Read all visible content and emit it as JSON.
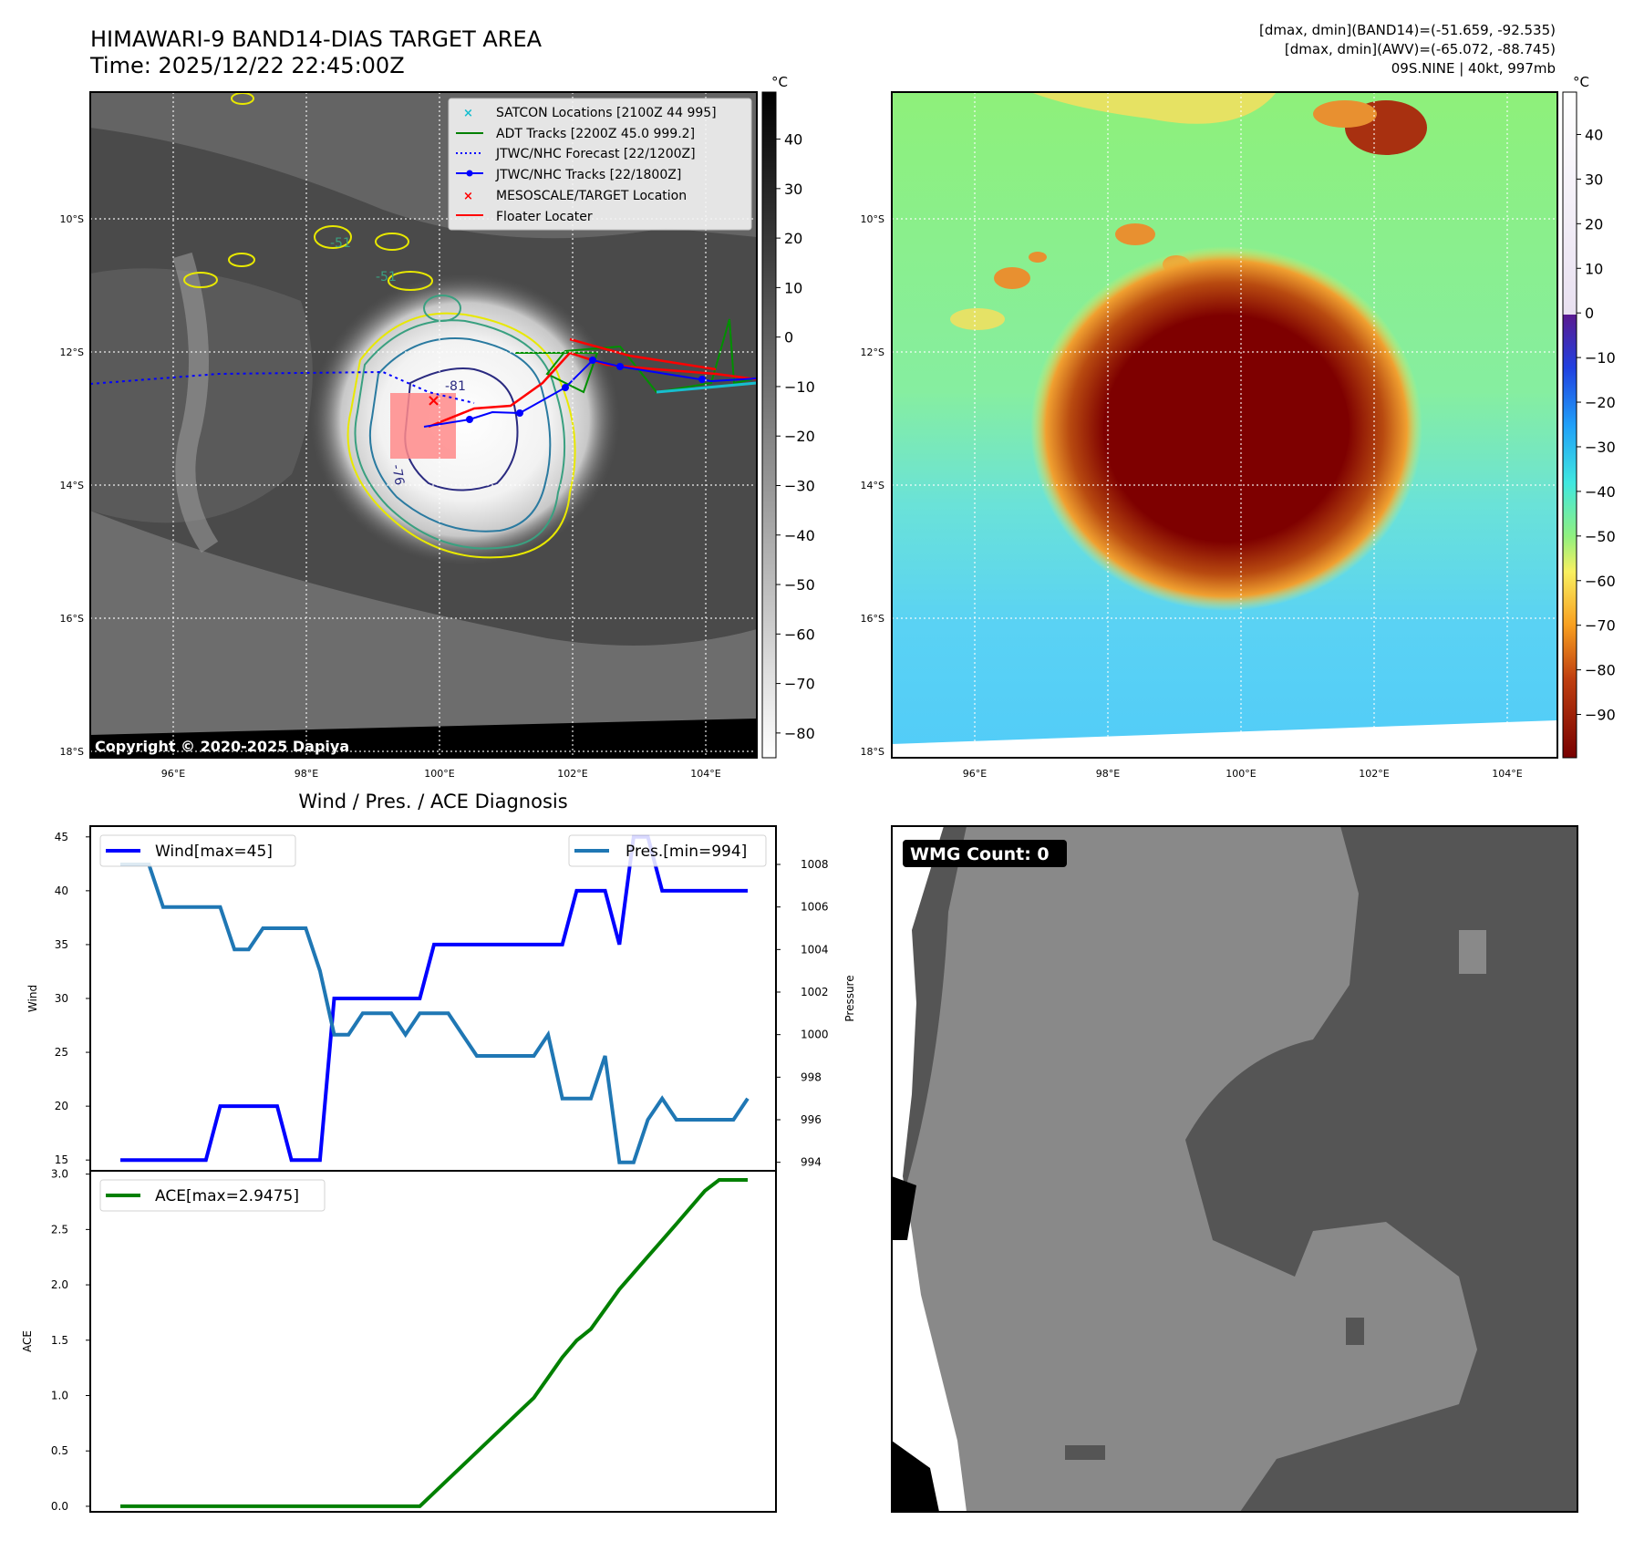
{
  "header": {
    "title_line1": "HIMAWARI-9 BAND14-DIAS TARGET AREA",
    "title_line2": "Time: 2025/12/22 22:45:00Z",
    "info_line1": "[dmax, dmin](BAND14)=(-51.659, -92.535)",
    "info_line2": "[dmax, dmin](AWV)=(-65.072, -88.745)",
    "info_line3": "09S.NINE | 40kt, 997mb"
  },
  "map": {
    "lat_labels": [
      "10°S",
      "12°S",
      "14°S",
      "16°S",
      "18°S"
    ],
    "lon_labels": [
      "96°E",
      "98°E",
      "100°E",
      "102°E",
      "104°E"
    ],
    "copyright": "Copyright © 2020-2025 Dapiya",
    "contour_labels": [
      "-51",
      "-51",
      "-81",
      "-76"
    ],
    "legend": [
      {
        "label": "SATCON Locations [2100Z 44 995]",
        "color": "#17becf"
      },
      {
        "label": "ADT Tracks [2200Z 45.0 999.2]",
        "color": "#008000"
      },
      {
        "label": "JTWC/NHC Forecast [22/1200Z]",
        "color": "#0000ff"
      },
      {
        "label": "JTWC/NHC Tracks [22/1800Z]",
        "color": "#0000ff"
      },
      {
        "label": "MESOSCALE/TARGET Location",
        "color": "#ff0000"
      },
      {
        "label": "Floater Locater",
        "color": "#ff0000"
      }
    ]
  },
  "colorbar_gray": {
    "unit": "°C",
    "ticks": [
      "40",
      "30",
      "20",
      "10",
      "0",
      "−10",
      "−20",
      "−30",
      "−40",
      "−50",
      "−60",
      "−70",
      "−80"
    ]
  },
  "colorbar_color": {
    "unit": "°C",
    "ticks": [
      "40",
      "30",
      "20",
      "10",
      "0",
      "−10",
      "−20",
      "−30",
      "−40",
      "−50",
      "−60",
      "−70",
      "−80",
      "−90"
    ]
  },
  "wmg": {
    "badge": "WMG Count: 0"
  },
  "colors": {
    "wind": "#0000ff",
    "pres": "#1f77b4",
    "ace": "#008000"
  },
  "chart_data": [
    {
      "type": "line",
      "title": "Wind / Pres. / ACE Diagnosis",
      "ylabel": "Wind",
      "y2label": "Pressure",
      "ylim": [
        14,
        46
      ],
      "y2lim": [
        993.6,
        1009.8
      ],
      "yticks": [
        "15",
        "20",
        "25",
        "30",
        "35",
        "40",
        "45"
      ],
      "y2ticks": [
        "994",
        "996",
        "998",
        "1000",
        "1002",
        "1004",
        "1006",
        "1008"
      ],
      "x": [
        0,
        1,
        2,
        3,
        4,
        5,
        6,
        7,
        8,
        9,
        10,
        11,
        12,
        13,
        14,
        15,
        16,
        17,
        18,
        19,
        20,
        21,
        22,
        23,
        24,
        25,
        26,
        27,
        28,
        29,
        30,
        31,
        32,
        33,
        34,
        35,
        36,
        37,
        38,
        39,
        40,
        41,
        42,
        43,
        44
      ],
      "series": [
        {
          "name": "Wind[max=45]",
          "axis": "left",
          "values": [
            15,
            15,
            15,
            15,
            15,
            15,
            15,
            20,
            20,
            20,
            20,
            20,
            15,
            15,
            15,
            30,
            30,
            30,
            30,
            30,
            30,
            30,
            35,
            35,
            35,
            35,
            35,
            35,
            35,
            35,
            35,
            35,
            40,
            40,
            40,
            35,
            45,
            45,
            40,
            40,
            40,
            40,
            40,
            40,
            40
          ]
        },
        {
          "name": "Pres.[min=994]",
          "axis": "right",
          "values": [
            1008,
            1008,
            1008,
            1006,
            1006,
            1006,
            1006,
            1006,
            1004,
            1004,
            1005,
            1005,
            1005,
            1005,
            1003,
            1000,
            1000,
            1001,
            1001,
            1001,
            1000,
            1001,
            1001,
            1001,
            1000,
            999,
            999,
            999,
            999,
            999,
            1000,
            997,
            997,
            997,
            999,
            994,
            994,
            996,
            997,
            996,
            996,
            996,
            996,
            996,
            997
          ]
        }
      ]
    },
    {
      "type": "line",
      "ylabel": "ACE",
      "ylim": [
        -0.05,
        3.03
      ],
      "yticks": [
        "0.0",
        "0.5",
        "1.0",
        "1.5",
        "2.0",
        "2.5",
        "3.0"
      ],
      "x": [
        0,
        1,
        2,
        3,
        4,
        5,
        6,
        7,
        8,
        9,
        10,
        11,
        12,
        13,
        14,
        15,
        16,
        17,
        18,
        19,
        20,
        21,
        22,
        23,
        24,
        25,
        26,
        27,
        28,
        29,
        30,
        31,
        32,
        33,
        34,
        35,
        36,
        37,
        38,
        39,
        40,
        41,
        42,
        43,
        44
      ],
      "series": [
        {
          "name": "ACE[max=2.9475]",
          "values": [
            0,
            0,
            0,
            0,
            0,
            0,
            0,
            0,
            0,
            0,
            0,
            0,
            0,
            0,
            0,
            0,
            0,
            0,
            0,
            0,
            0,
            0,
            0.1225,
            0.245,
            0.3675,
            0.49,
            0.6125,
            0.735,
            0.8575,
            0.98,
            1.1625,
            1.345,
            1.4975,
            1.6,
            1.78,
            1.96,
            2.1075,
            2.255,
            2.4025,
            2.55,
            2.7,
            2.85,
            2.9475,
            2.9475,
            2.9475
          ]
        }
      ]
    }
  ]
}
